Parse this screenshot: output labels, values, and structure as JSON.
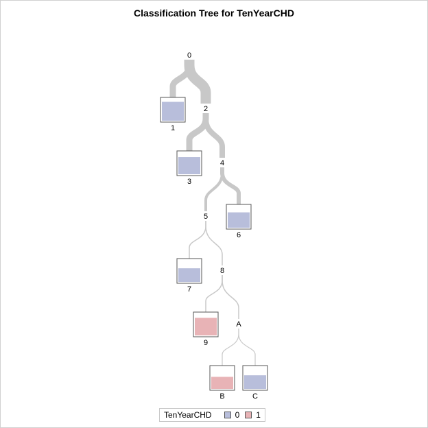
{
  "title": "Classification Tree for TenYearCHD",
  "colors": {
    "class0": "#b8bedb",
    "class1": "#e8b3b6",
    "branch": "#c8c8c8"
  },
  "legend": {
    "title": "TenYearCHD",
    "items": [
      {
        "label": "0",
        "color": "#b8bedb"
      },
      {
        "label": "1",
        "color": "#e8b3b6"
      }
    ]
  },
  "tree": {
    "split_nodes": [
      {
        "id": "0",
        "children": [
          "1",
          "2"
        ]
      },
      {
        "id": "2",
        "children": [
          "3",
          "4"
        ]
      },
      {
        "id": "4",
        "children": [
          "5",
          "6"
        ]
      },
      {
        "id": "5",
        "children": [
          "7",
          "8"
        ]
      },
      {
        "id": "8",
        "children": [
          "9",
          "A"
        ]
      },
      {
        "id": "A",
        "children": [
          "B",
          "C"
        ]
      }
    ],
    "leaf_nodes": [
      {
        "id": "1",
        "predicted": "0",
        "fill": 0.86
      },
      {
        "id": "3",
        "predicted": "0",
        "fill": 0.78
      },
      {
        "id": "6",
        "predicted": "0",
        "fill": 0.7
      },
      {
        "id": "7",
        "predicted": "0",
        "fill": 0.62
      },
      {
        "id": "9",
        "predicted": "1",
        "fill": 0.8
      },
      {
        "id": "B",
        "predicted": "1",
        "fill": 0.55
      },
      {
        "id": "C",
        "predicted": "0",
        "fill": 0.62
      }
    ]
  }
}
